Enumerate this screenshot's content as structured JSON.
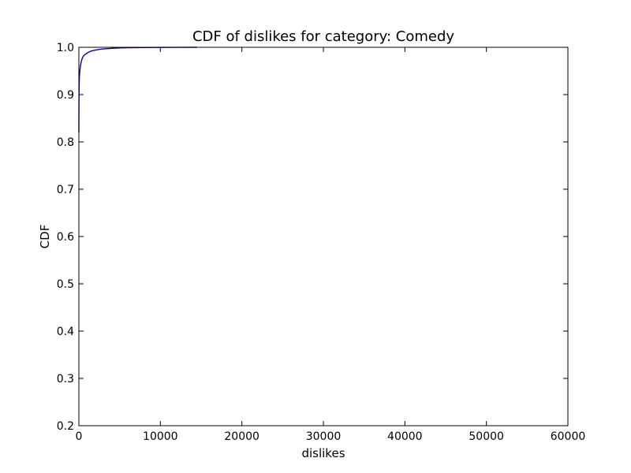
{
  "chart_data": {
    "type": "line",
    "title": "CDF of dislikes for category: Comedy",
    "xlabel": "dislikes",
    "ylabel": "CDF",
    "xlim": [
      0,
      60000
    ],
    "ylim": [
      0.2,
      1.0
    ],
    "x_ticks": [
      0,
      10000,
      20000,
      30000,
      40000,
      50000,
      60000
    ],
    "x_tick_labels": [
      "0",
      "10000",
      "20000",
      "30000",
      "40000",
      "50000",
      "60000"
    ],
    "y_ticks": [
      0.2,
      0.3,
      0.4,
      0.5,
      0.6,
      0.7,
      0.8,
      0.9,
      1.0
    ],
    "y_tick_labels": [
      "0.2",
      "0.3",
      "0.4",
      "0.5",
      "0.6",
      "0.7",
      "0.8",
      "0.9",
      "1.0"
    ],
    "grid": false,
    "legend": "none",
    "series": [
      {
        "color": "#0000b0",
        "x": [
          0,
          10,
          30,
          60,
          100,
          150,
          200,
          300,
          400,
          500,
          700,
          1000,
          1500,
          2000,
          2500,
          3000,
          4000,
          5000,
          6000,
          8000,
          10000,
          12000,
          14500
        ],
        "y": [
          0.82,
          0.88,
          0.915,
          0.935,
          0.945,
          0.955,
          0.962,
          0.97,
          0.976,
          0.98,
          0.984,
          0.988,
          0.992,
          0.994,
          0.9955,
          0.9965,
          0.9978,
          0.9986,
          0.999,
          0.9995,
          0.9998,
          0.9999,
          1.0
        ]
      }
    ]
  }
}
